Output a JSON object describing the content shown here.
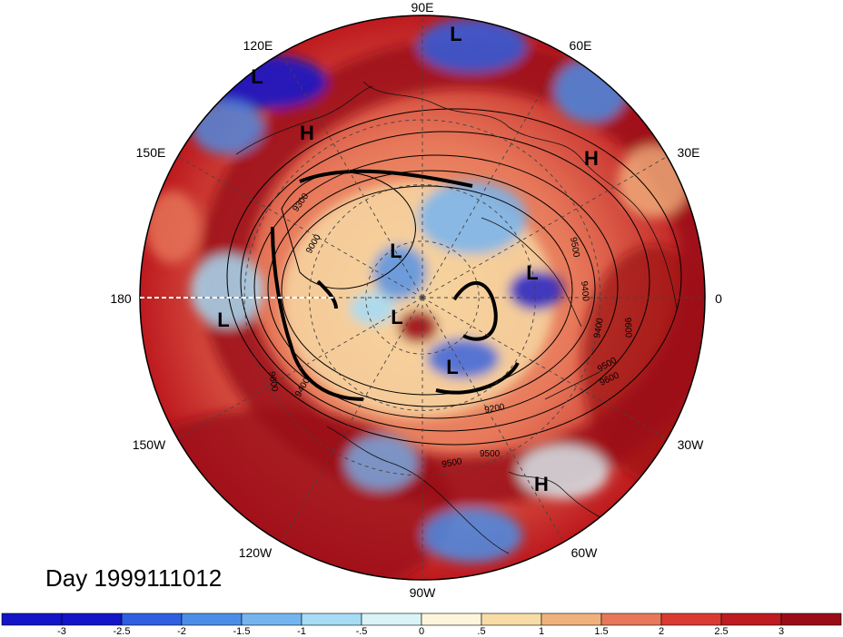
{
  "map": {
    "projection": "north-polar-stereographic",
    "longitude_labels": {
      "e90": "90E",
      "e120": "120E",
      "e60": "60E",
      "e150": "150E",
      "e30": "30E",
      "w180": "180",
      "e0": "0",
      "w150": "150W",
      "w30": "30W",
      "w120": "120W",
      "w60": "60W",
      "w90": "90W"
    },
    "pressure_systems": [
      {
        "label": "L"
      },
      {
        "label": "L"
      },
      {
        "label": "H"
      },
      {
        "label": "H"
      },
      {
        "label": "L"
      },
      {
        "label": "L"
      },
      {
        "label": "L"
      },
      {
        "label": "L"
      },
      {
        "label": "L"
      },
      {
        "label": "H"
      }
    ],
    "contour_labels": [
      "9300",
      "9000",
      "9500",
      "9400",
      "9600",
      "9400",
      "9500",
      "9200",
      "9500",
      "9600",
      "9600",
      "9400",
      "9500"
    ]
  },
  "date_label": "Day 1999111012",
  "colorbar": {
    "tick_labels": [
      "-3",
      "-2.5",
      "-2",
      "-1.5",
      "-1",
      "-.5",
      "0",
      ".5",
      "1",
      "1.5",
      "2",
      "2.5",
      "3"
    ],
    "colors": [
      "#1414c8",
      "#2f5fe0",
      "#4b8ee8",
      "#74b5f0",
      "#a6dcf4",
      "#daf3f7",
      "#fdf6dc",
      "#f7dca6",
      "#f1b17d",
      "#e7785a",
      "#db3a32",
      "#be1a1f",
      "#9b0d16"
    ]
  }
}
